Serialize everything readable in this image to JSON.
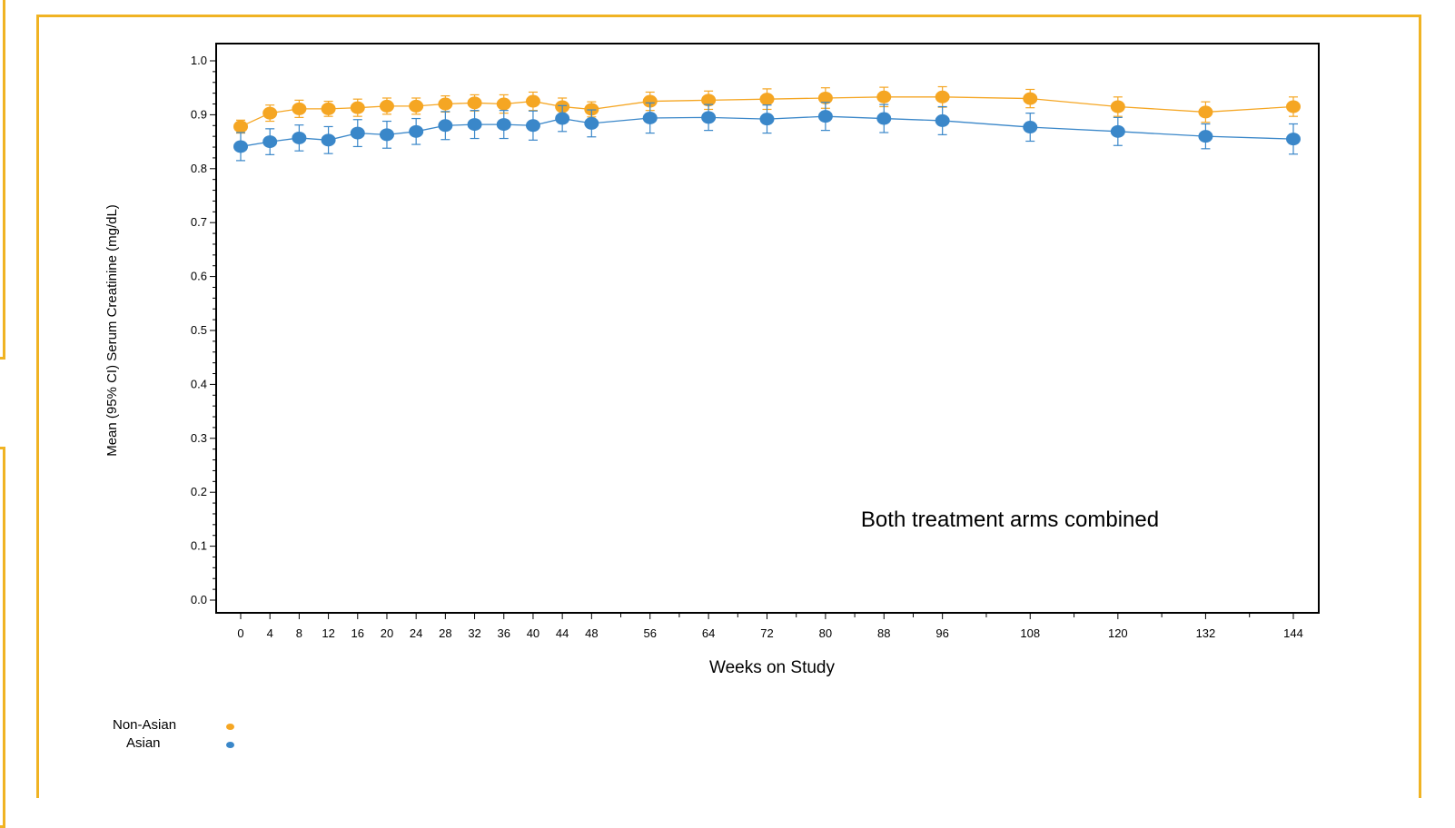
{
  "chart_data": {
    "type": "line",
    "title": "",
    "annotation": "Both treatment arms combined",
    "xlabel": "Weeks on Study",
    "ylabel": "Mean (95% CI) Serum Creatinine (mg/dL)",
    "ylim": [
      0.0,
      1.0
    ],
    "yticks": [
      "0.0",
      "0.1",
      "0.2",
      "0.3",
      "0.4",
      "0.5",
      "0.6",
      "0.7",
      "0.8",
      "0.9",
      "1.0"
    ],
    "xticks": [
      "0",
      "4",
      "8",
      "12",
      "16",
      "20",
      "24",
      "28",
      "32",
      "36",
      "40",
      "44",
      "48",
      "56",
      "64",
      "72",
      "80",
      "88",
      "96",
      "108",
      "120",
      "132",
      "144"
    ],
    "grid": false,
    "legend_position": "bottom-left",
    "series": [
      {
        "name": "Non-Asian",
        "color": "#F5A623",
        "x": [
          0,
          4,
          8,
          12,
          16,
          20,
          24,
          28,
          32,
          36,
          40,
          44,
          48,
          56,
          64,
          72,
          80,
          88,
          96,
          108,
          120,
          132,
          144
        ],
        "y": [
          0.878,
          0.903,
          0.911,
          0.911,
          0.913,
          0.916,
          0.916,
          0.92,
          0.922,
          0.92,
          0.925,
          0.915,
          0.91,
          0.925,
          0.927,
          0.929,
          0.931,
          0.933,
          0.933,
          0.93,
          0.915,
          0.905,
          0.915
        ],
        "ci": [
          0.012,
          0.015,
          0.016,
          0.014,
          0.016,
          0.015,
          0.015,
          0.015,
          0.015,
          0.017,
          0.017,
          0.016,
          0.014,
          0.017,
          0.017,
          0.019,
          0.019,
          0.018,
          0.019,
          0.017,
          0.018,
          0.019,
          0.018
        ]
      },
      {
        "name": "Asian",
        "color": "#3A87C9",
        "x": [
          0,
          4,
          8,
          12,
          16,
          20,
          24,
          28,
          32,
          36,
          40,
          44,
          48,
          56,
          64,
          72,
          80,
          88,
          96,
          108,
          120,
          132,
          144
        ],
        "y": [
          0.841,
          0.85,
          0.857,
          0.853,
          0.866,
          0.863,
          0.869,
          0.88,
          0.882,
          0.882,
          0.88,
          0.893,
          0.884,
          0.894,
          0.895,
          0.892,
          0.897,
          0.893,
          0.889,
          0.877,
          0.869,
          0.86,
          0.855
        ],
        "ci": [
          0.026,
          0.024,
          0.024,
          0.025,
          0.025,
          0.025,
          0.024,
          0.026,
          0.026,
          0.026,
          0.027,
          0.024,
          0.025,
          0.028,
          0.024,
          0.026,
          0.026,
          0.026,
          0.026,
          0.026,
          0.026,
          0.023,
          0.028
        ]
      }
    ]
  }
}
